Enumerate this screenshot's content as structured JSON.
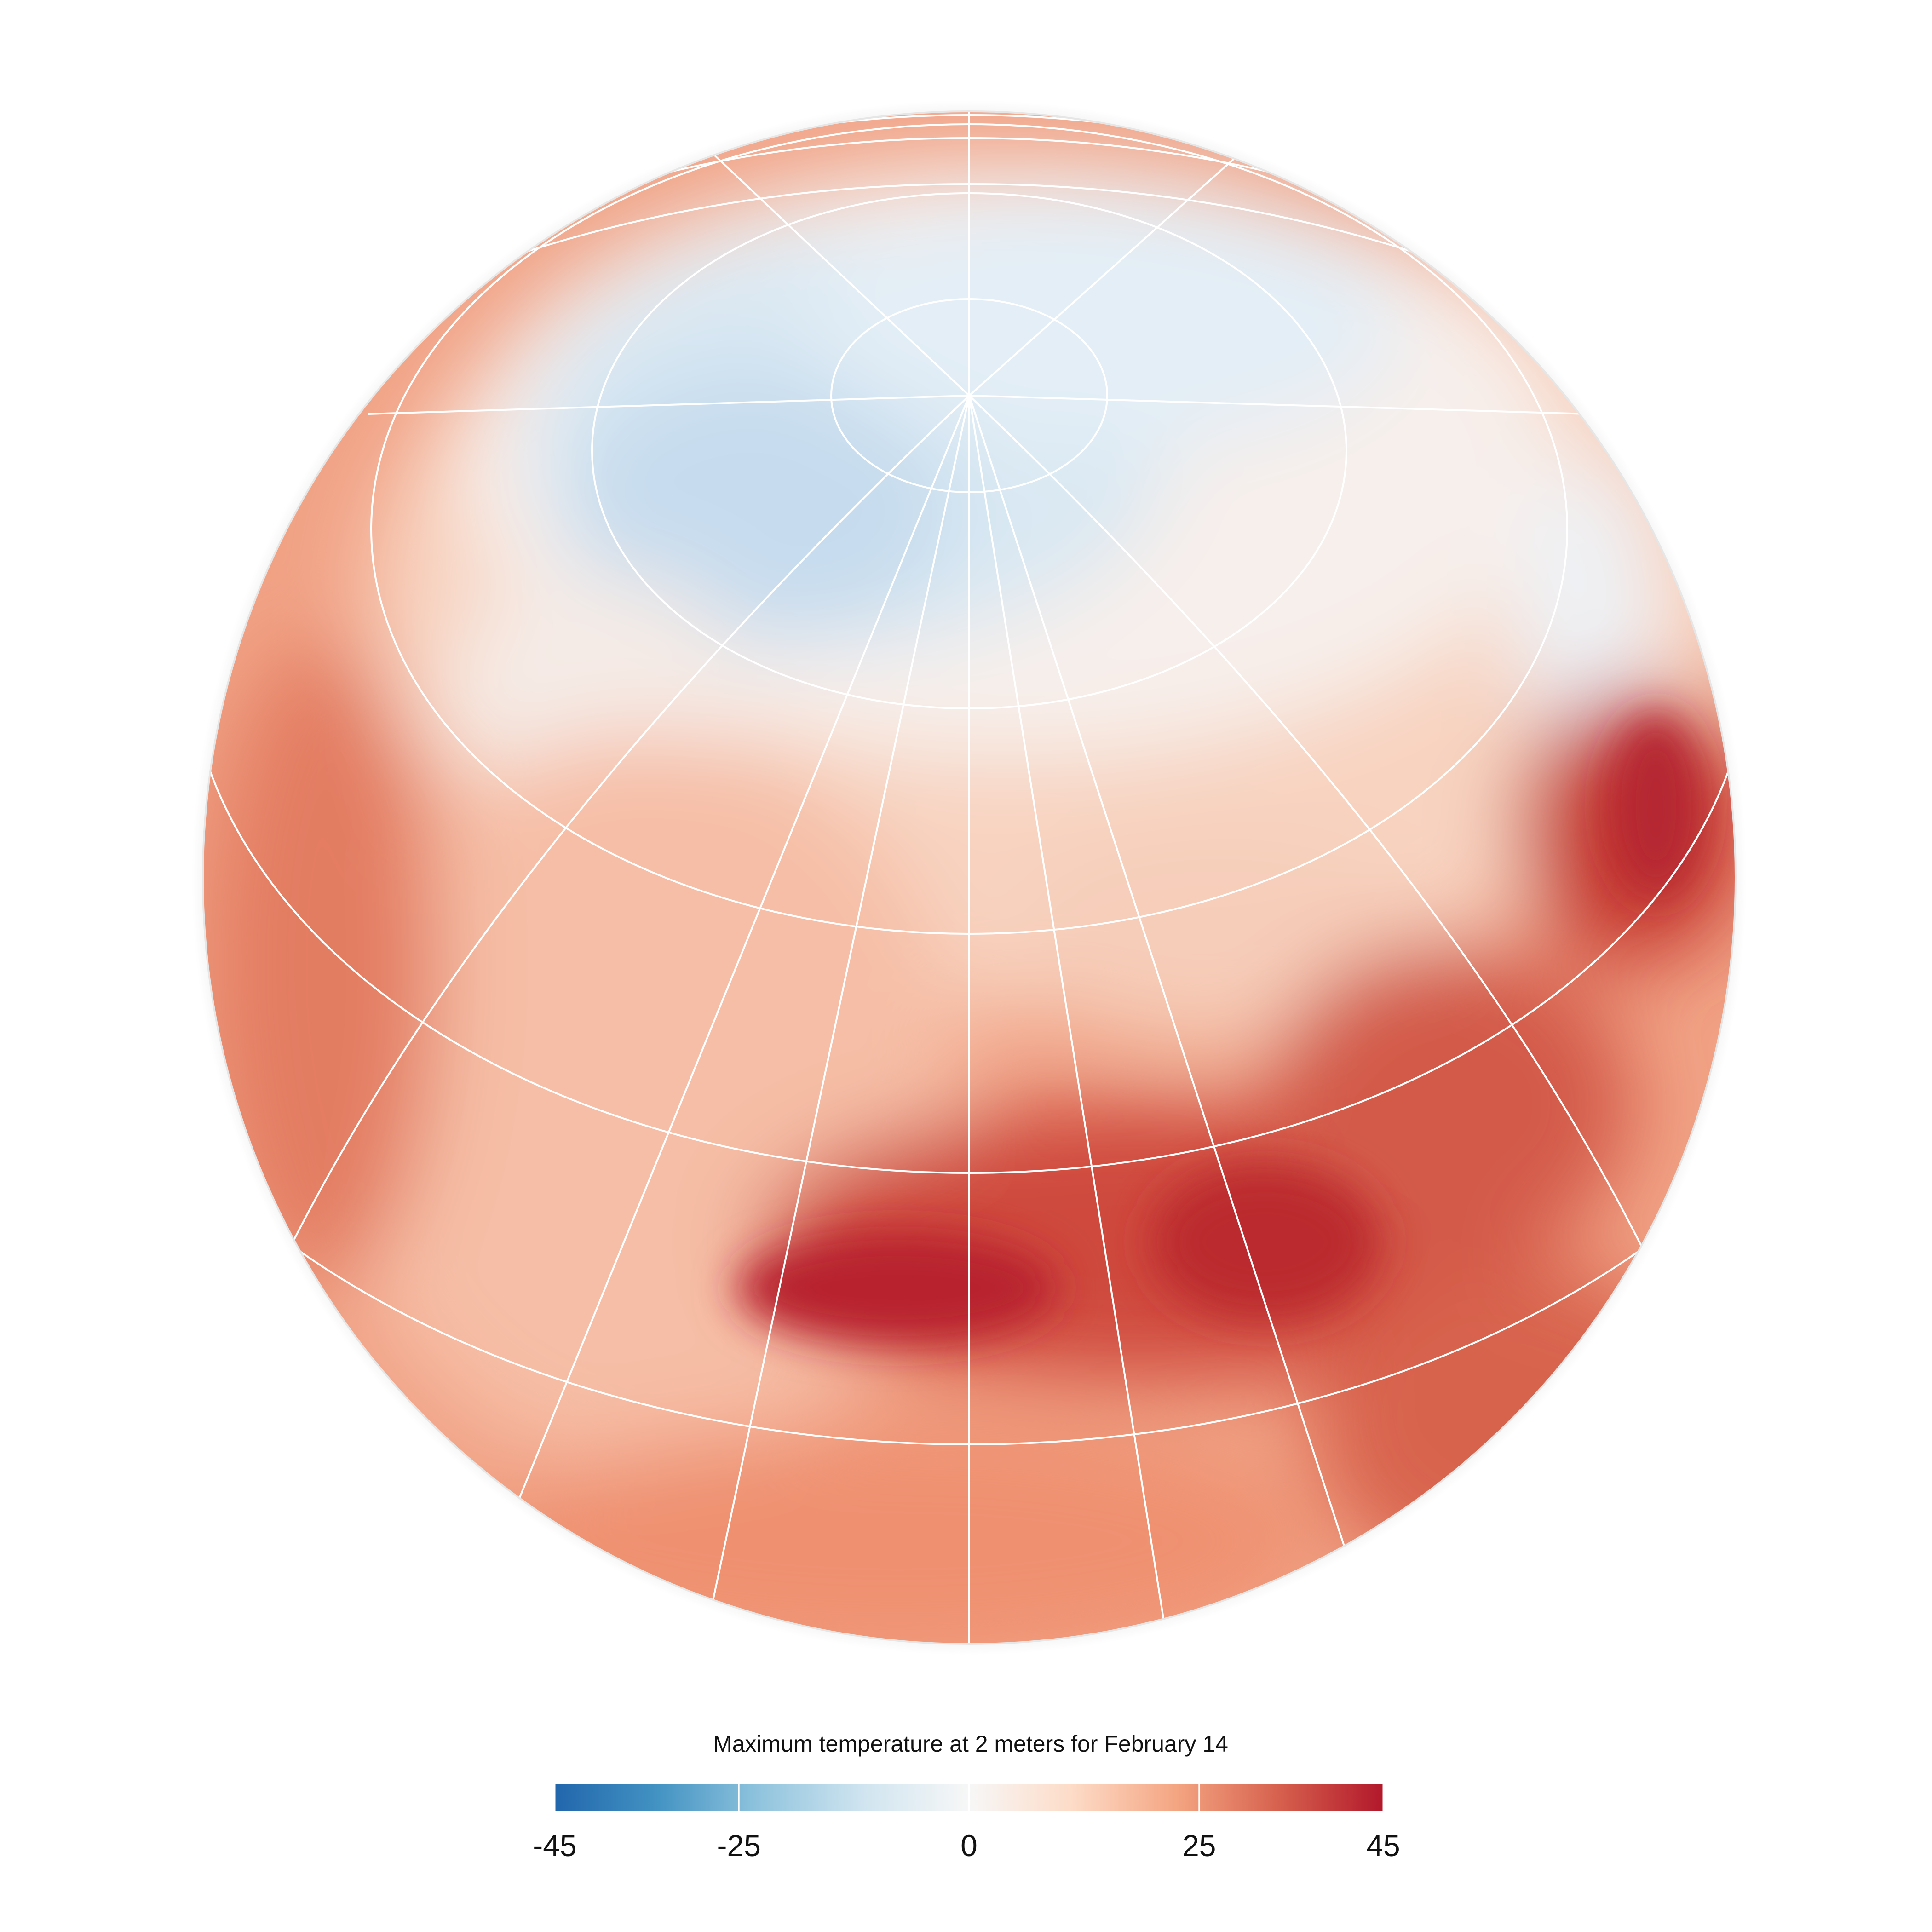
{
  "map": {
    "title": "Maximum temperature at 2 meters for February 14",
    "colorbar": {
      "lim": [
        -45,
        45
      ],
      "ticks": [
        -45,
        -25,
        0,
        25,
        45
      ],
      "colors": [
        "#2166ac",
        "#4393c3",
        "#92c5de",
        "#d1e5f0",
        "#f7f7f7",
        "#fddbc7",
        "#f4a582",
        "#d6604d",
        "#b2182b"
      ]
    }
  }
}
